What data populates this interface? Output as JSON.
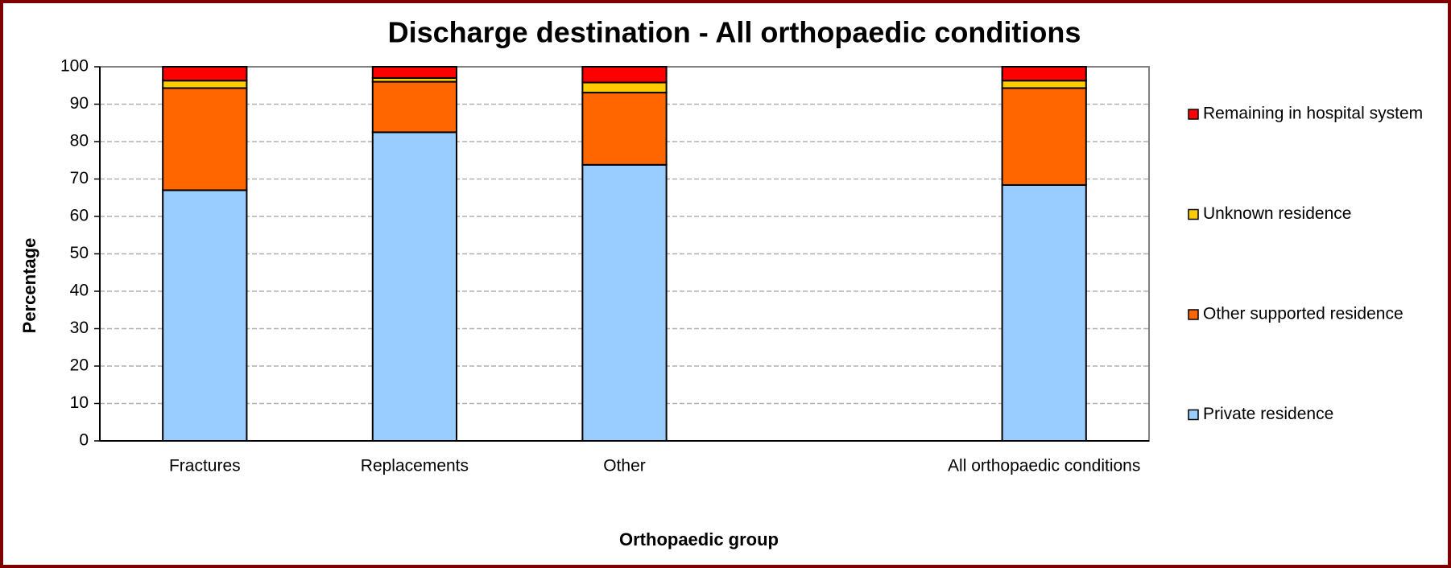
{
  "chart_data": {
    "type": "stacked_bar",
    "title": "Discharge destination - All orthopaedic conditions",
    "x_label": "Orthopaedic group",
    "y_label": "Percentage",
    "categories": [
      "Fractures",
      "Replacements",
      "Other",
      null,
      "All orthopaedic conditions"
    ],
    "series": [
      {
        "name": "Private residence",
        "color": "#99ccff",
        "values": [
          67,
          82.5,
          73.8,
          null,
          68.4
        ]
      },
      {
        "name": "Other supported residence",
        "color": "#ff6600",
        "values": [
          27.3,
          13.5,
          19.3,
          null,
          25.9
        ]
      },
      {
        "name": "Unknown residence",
        "color": "#ffcc00",
        "values": [
          2,
          1,
          2.7,
          null,
          2
        ]
      },
      {
        "name": "Remaining in hospital system",
        "color": "#ff0000",
        "values": [
          3.7,
          3,
          4.2,
          null,
          3.7
        ]
      }
    ],
    "ylim": [
      0,
      100
    ],
    "yticks": [
      0,
      10,
      20,
      30,
      40,
      50,
      60,
      70,
      80,
      90,
      100
    ],
    "grid": true,
    "legend": "right"
  }
}
